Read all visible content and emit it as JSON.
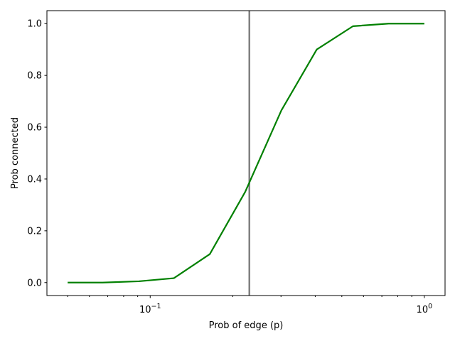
{
  "chart_data": {
    "type": "line",
    "title": "",
    "xlabel": "Prob of edge (p)",
    "ylabel": "Prob connected",
    "xscale": "log",
    "xlim": [
      0.042,
      1.19
    ],
    "ylim": [
      -0.05,
      1.05
    ],
    "grid": false,
    "legend": "none",
    "x_ticks_major": [
      {
        "value": 0.1,
        "label": "10",
        "sup": "−1"
      },
      {
        "value": 1.0,
        "label": "10",
        "sup": "0"
      }
    ],
    "x_ticks_minor": [
      0.05,
      0.06,
      0.07,
      0.08,
      0.09,
      0.2,
      0.3,
      0.4,
      0.5,
      0.6,
      0.7,
      0.8,
      0.9
    ],
    "y_ticks": [
      {
        "value": 0.0,
        "label": "0.0"
      },
      {
        "value": 0.2,
        "label": "0.2"
      },
      {
        "value": 0.4,
        "label": "0.4"
      },
      {
        "value": 0.6,
        "label": "0.6"
      },
      {
        "value": 0.8,
        "label": "0.8"
      },
      {
        "value": 1.0,
        "label": "1.0"
      }
    ],
    "series": [
      {
        "color": "#008000",
        "x": [
          0.05,
          0.067,
          0.091,
          0.122,
          0.165,
          0.222,
          0.301,
          0.405,
          0.549,
          0.741,
          1.0
        ],
        "y": [
          0.0,
          0.0,
          0.005,
          0.017,
          0.11,
          0.35,
          0.665,
          0.9,
          0.99,
          1.0,
          1.0
        ]
      }
    ],
    "vline": {
      "x": 0.23,
      "color": "#808080"
    }
  }
}
